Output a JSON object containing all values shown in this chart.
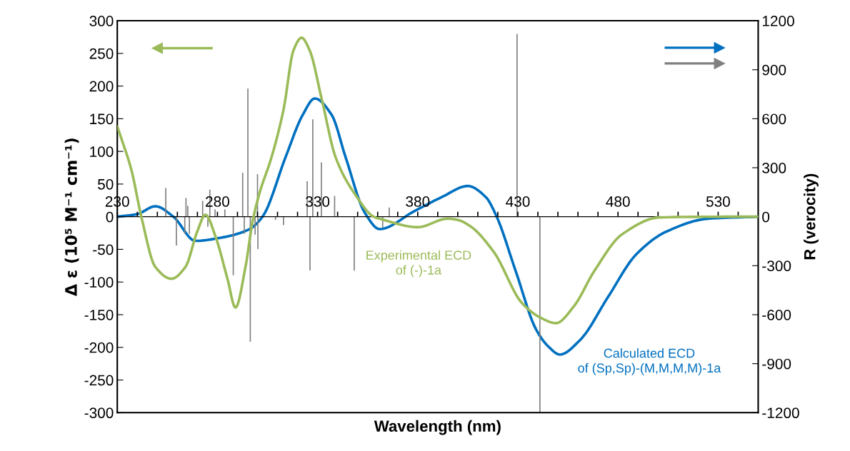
{
  "chart_data": {
    "type": "line",
    "xlabel": "Wavelength (nm)",
    "ylabel": "Δ ε (10⁵ M⁻¹ cm⁻¹)",
    "y2label": "R (verocity)",
    "xlim": [
      230,
      550
    ],
    "xticks": [
      230,
      {
        "value": 240,
        "label": null
      },
      {
        "value": 250,
        "label": null
      },
      {
        "value": 260,
        "label": null
      },
      {
        "value": 270,
        "label": null
      },
      280,
      {
        "value": 290,
        "label": null
      },
      {
        "value": 300,
        "label": null
      },
      {
        "value": 310,
        "label": null
      },
      {
        "value": 320,
        "label": null
      },
      330,
      {
        "value": 340,
        "label": null
      },
      {
        "value": 350,
        "label": null
      },
      {
        "value": 360,
        "label": null
      },
      {
        "value": 370,
        "label": null
      },
      380,
      {
        "value": 390,
        "label": null
      },
      {
        "value": 400,
        "label": null
      },
      {
        "value": 410,
        "label": null
      },
      {
        "value": 420,
        "label": null
      },
      430,
      {
        "value": 440,
        "label": null
      },
      {
        "value": 450,
        "label": null
      },
      {
        "value": 460,
        "label": null
      },
      {
        "value": 470,
        "label": null
      },
      480,
      {
        "value": 490,
        "label": null
      },
      {
        "value": 500,
        "label": null
      },
      {
        "value": 510,
        "label": null
      },
      {
        "value": 520,
        "label": null
      },
      530,
      {
        "value": 540,
        "label": null
      }
    ],
    "ylim": [
      -300,
      300
    ],
    "yticks": [
      -300,
      -250,
      -200,
      -150,
      -100,
      -50,
      0,
      50,
      100,
      150,
      200,
      250,
      300
    ],
    "y2lim": [
      -1200,
      1200
    ],
    "y2ticks": [
      -1200,
      -900,
      -600,
      -300,
      0,
      300,
      600,
      900,
      1200
    ],
    "grid": false,
    "legend": false,
    "marker": "none",
    "line_style": "solid",
    "series": [
      {
        "name": "Experimental ECD\nof (-)-1a",
        "color": "#9bbb59",
        "x": [
          230,
          232,
          237,
          242,
          249,
          257,
          264,
          270,
          274,
          279,
          285,
          289,
          294,
          297.5,
          301,
          307,
          313,
          318,
          322,
          326,
          332,
          339,
          349,
          358,
          362,
          380,
          395,
          400,
          406,
          418,
          432,
          441,
          449,
          458,
          468,
          482,
          501,
          533,
          550
        ],
        "values": [
          138,
          120,
          72,
          0,
          -77,
          -95,
          -77,
          -22,
          3,
          -30,
          -95,
          -139,
          -77,
          -8,
          36,
          91,
          164,
          255,
          274,
          255,
          181,
          91,
          33,
          0,
          -4,
          -16,
          -3,
          -5,
          -14,
          -54,
          -132,
          -154,
          -163,
          -137,
          -84,
          -27,
          -1,
          0,
          0
        ]
      },
      {
        "name": "Calculated ECD\nof (Sp,Sp)-(M,M,M,M)-1a",
        "color": "#0070c0",
        "axis": "y2",
        "x": [
          230,
          240,
          249,
          258,
          269,
          282,
          296,
          302.5,
          314,
          322.6,
          328.6,
          337,
          344,
          353.6,
          361,
          378,
          392,
          405,
          414,
          419,
          429,
          439,
          445,
          451,
          461,
          475,
          489,
          504,
          525,
          550
        ],
        "values": [
          0,
          16,
          64,
          0,
          -148,
          -128,
          -76,
          0,
          364,
          624,
          724,
          624,
          364,
          24,
          -76,
          32,
          120,
          188,
          120,
          12,
          -336,
          -688,
          -792,
          -844,
          -756,
          -492,
          -232,
          -92,
          -12,
          0
        ]
      },
      {
        "color": "#808080",
        "type": "bar",
        "axis": "y2",
        "x": [
          254.2,
          259.5,
          263.7,
          264.3,
          265.2,
          266,
          272.6,
          275.2,
          276.2,
          278.8,
          283.7,
          287.9,
          292.6,
          293.4,
          295.2,
          296.4,
          298.8,
          300,
          300.2,
          309,
          313,
          324.8,
          326.2,
          327.6,
          331.9,
          338.5,
          348.3,
          362.5,
          365.8,
          429.6,
          441
        ],
        "values": [
          176,
          -176,
          -104,
          115,
          66,
          -105,
          97,
          -61,
          166,
          44,
          45,
          -358,
          268,
          -105,
          785,
          -766,
          -110,
          261,
          -198,
          -20,
          -52,
          217,
          -329,
          596,
          333,
          127,
          -330,
          -66,
          57,
          1120,
          -1200
        ]
      }
    ]
  }
}
